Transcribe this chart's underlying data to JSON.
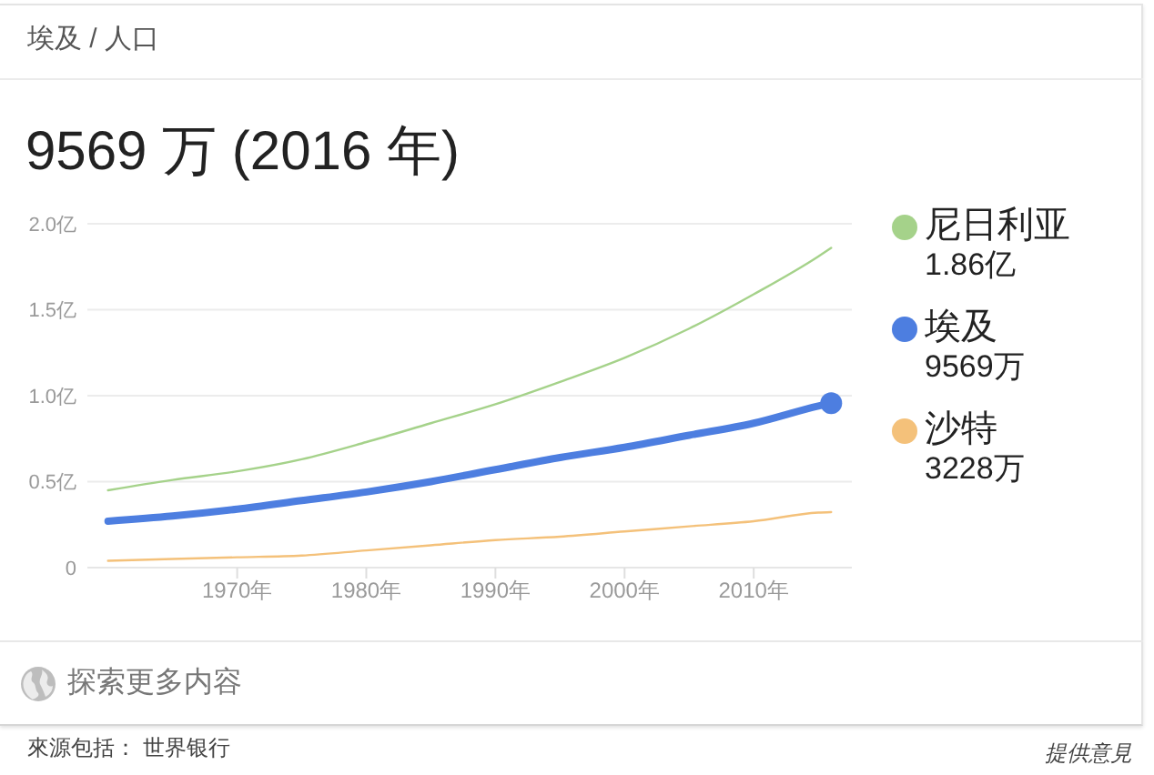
{
  "chart_data": {
    "type": "line",
    "title": "埃及 / 人口",
    "subtitle": "9569 万 (2016 年)",
    "x": [
      1960,
      1965,
      1970,
      1975,
      1980,
      1985,
      1990,
      1995,
      2000,
      2005,
      2010,
      2015,
      2016
    ],
    "series": [
      {
        "name": "尼日利亚",
        "color": "#a5d28a",
        "values": [
          0.45,
          0.51,
          0.56,
          0.63,
          0.73,
          0.84,
          0.95,
          1.08,
          1.22,
          1.39,
          1.59,
          1.81,
          1.86
        ]
      },
      {
        "name": "埃及",
        "color": "#4d7ee0",
        "values": [
          0.27,
          0.3,
          0.34,
          0.39,
          0.44,
          0.5,
          0.57,
          0.64,
          0.7,
          0.77,
          0.84,
          0.94,
          0.9569
        ]
      },
      {
        "name": "沙特",
        "color": "#f4c17a",
        "values": [
          0.04,
          0.05,
          0.06,
          0.07,
          0.1,
          0.13,
          0.16,
          0.18,
          0.21,
          0.24,
          0.27,
          0.32,
          0.3228
        ]
      },
      {
        "type": "scatter",
        "color": "#4d7ee0",
        "x": [
          2016
        ],
        "values": [
          0.9569
        ]
      }
    ],
    "xlim": [
      1958.4,
      2017.6
    ],
    "xticks": [
      {
        "value": 1970,
        "label": "1970年"
      },
      {
        "value": 1980,
        "label": "1980年"
      },
      {
        "value": 1990,
        "label": "1990年"
      },
      {
        "value": 2000,
        "label": "2000年"
      },
      {
        "value": 2010,
        "label": "2010年"
      }
    ],
    "ylim": [
      0,
      2
    ],
    "yticks": [
      0,
      {
        "value": 0.5,
        "label": "0.5亿"
      },
      {
        "value": 1,
        "label": "1.0亿"
      },
      {
        "value": 1.5,
        "label": "1.5亿"
      },
      {
        "value": 2,
        "label": "2.0亿"
      }
    ],
    "grid": "y",
    "legend": "right",
    "annotations": [
      "1.86亿",
      "9569万",
      "3228万",
      "探索更多内容",
      "來源包括： 世界银行",
      "提供意見"
    ]
  }
}
